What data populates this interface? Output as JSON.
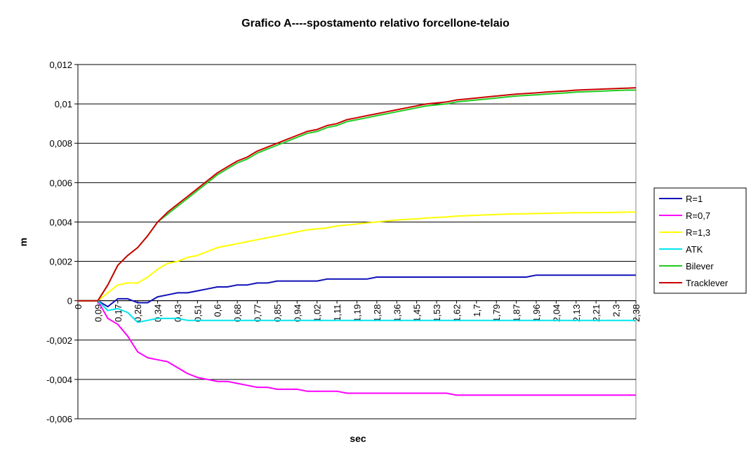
{
  "chart_data": {
    "type": "line",
    "title": "Grafico A----spostamento relativo forcellone-telaio",
    "x_label": "sec",
    "y_label": "m",
    "categories": [
      "0",
      null,
      "0,09",
      null,
      "0,17",
      null,
      "0,26",
      null,
      "0,34",
      null,
      "0,43",
      null,
      "0,51",
      null,
      "0,6",
      null,
      "0,68",
      null,
      "0,77",
      null,
      "0,85",
      null,
      "0,94",
      null,
      "1,02",
      null,
      "1,11",
      null,
      "1,19",
      null,
      "1,28",
      null,
      "1,36",
      null,
      "1,45",
      null,
      "1,53",
      null,
      "1,62",
      null,
      "1,7",
      null,
      "1,79",
      null,
      "1,87",
      null,
      "1,96",
      null,
      "2,04",
      null,
      "2,13",
      null,
      "2,21",
      null,
      "2,3",
      null,
      "2,38"
    ],
    "ylim": [
      -0.006,
      0.012
    ],
    "yticks": [
      {
        "value": 0.012,
        "label": "0,012"
      },
      {
        "value": 0.01,
        "label": "0,01"
      },
      {
        "value": 0.008,
        "label": "0,008"
      },
      {
        "value": 0.006,
        "label": "0,006"
      },
      {
        "value": 0.004,
        "label": "0,004"
      },
      {
        "value": 0.002,
        "label": "0,002"
      },
      0,
      {
        "value": -0.002,
        "label": "-0,002"
      },
      {
        "value": -0.004,
        "label": "-0,004"
      },
      {
        "value": -0.006,
        "label": "-0,006"
      }
    ],
    "grid": true,
    "legend": "right",
    "series": [
      {
        "name": "R=1",
        "color": "#1010b8",
        "values": [
          0,
          0,
          0,
          -0.0003,
          0.0001,
          0.0001,
          -0.0001,
          -0.0001,
          0.0002,
          0.0003,
          0.0004,
          0.0004,
          0.0005,
          0.0006,
          0.0007,
          0.0007,
          0.0008,
          0.0008,
          0.0009,
          0.0009,
          0.001,
          0.001,
          0.001,
          0.001,
          0.001,
          0.0011,
          0.0011,
          0.0011,
          0.0011,
          0.0011,
          0.0012,
          0.0012,
          0.0012,
          0.0012,
          0.0012,
          0.0012,
          0.0012,
          0.0012,
          0.0012,
          0.0012,
          0.0012,
          0.0012,
          0.0012,
          0.0012,
          0.0012,
          0.0012,
          0.0013,
          0.0013,
          0.0013,
          0.0013,
          0.0013,
          0.0013,
          0.0013,
          0.0013,
          0.0013,
          0.0013,
          0.0013
        ]
      },
      {
        "name": "R=0,7",
        "color": "#ff00ff",
        "values": [
          0,
          0,
          0,
          -0.0009,
          -0.0012,
          -0.0018,
          -0.0026,
          -0.0029,
          -0.003,
          -0.0031,
          -0.0034,
          -0.0037,
          -0.0039,
          -0.004,
          -0.0041,
          -0.0041,
          -0.0042,
          -0.0043,
          -0.0044,
          -0.0044,
          -0.0045,
          -0.0045,
          -0.0045,
          -0.0046,
          -0.0046,
          -0.0046,
          -0.0046,
          -0.0047,
          -0.0047,
          -0.0047,
          -0.0047,
          -0.0047,
          -0.0047,
          -0.0047,
          -0.0047,
          -0.0047,
          -0.0047,
          -0.0047,
          -0.0048,
          -0.0048,
          -0.0048,
          -0.0048,
          -0.0048,
          -0.0048,
          -0.0048,
          -0.0048,
          -0.0048,
          -0.0048,
          -0.0048,
          -0.0048,
          -0.0048,
          -0.0048,
          -0.0048,
          -0.0048,
          -0.0048,
          -0.0048,
          -0.0048
        ]
      },
      {
        "name": "R=1,3",
        "color": "#ffff00",
        "values": [
          0,
          0,
          0,
          0.0004,
          0.0008,
          0.0009,
          0.0009,
          0.0012,
          0.0016,
          0.0019,
          0.002,
          0.0022,
          0.0023,
          0.0025,
          0.0027,
          0.0028,
          0.0029,
          0.003,
          0.0031,
          0.0032,
          0.0033,
          0.0034,
          0.0035,
          0.0036,
          0.00365,
          0.0037,
          0.0038,
          0.00385,
          0.0039,
          0.00395,
          0.004,
          0.00405,
          0.0041,
          0.00413,
          0.00416,
          0.0042,
          0.00423,
          0.00426,
          0.0043,
          0.00432,
          0.00434,
          0.00436,
          0.00438,
          0.0044,
          0.00441,
          0.00442,
          0.00443,
          0.00444,
          0.00445,
          0.00446,
          0.00447,
          0.00447,
          0.00448,
          0.00448,
          0.00449,
          0.0045,
          0.0045
        ]
      },
      {
        "name": "ATK",
        "color": "#00e5ee",
        "values": [
          0,
          0,
          0,
          -0.0005,
          -0.0004,
          -0.0006,
          -0.0011,
          -0.001,
          -0.0009,
          -0.0009,
          -0.0009,
          -0.001,
          -0.001,
          -0.001,
          -0.001,
          -0.001,
          -0.001,
          -0.001,
          -0.001,
          -0.001,
          -0.001,
          -0.001,
          -0.001,
          -0.001,
          -0.001,
          -0.001,
          -0.001,
          -0.001,
          -0.001,
          -0.001,
          -0.001,
          -0.001,
          -0.001,
          -0.001,
          -0.001,
          -0.001,
          -0.001,
          -0.001,
          -0.001,
          -0.001,
          -0.001,
          -0.001,
          -0.001,
          -0.001,
          -0.001,
          -0.001,
          -0.001,
          -0.001,
          -0.001,
          -0.001,
          -0.001,
          -0.001,
          -0.001,
          -0.001,
          -0.001,
          -0.001,
          -0.001
        ]
      },
      {
        "name": "Bilever",
        "color": "#22cc22",
        "values": [
          0,
          0,
          0,
          0.0008,
          0.0018,
          0.0023,
          0.0027,
          0.0033,
          0.004,
          0.0044,
          0.0048,
          0.0052,
          0.0056,
          0.006,
          0.0064,
          0.0067,
          0.007,
          0.0072,
          0.0075,
          0.0077,
          0.0079,
          0.0081,
          0.0083,
          0.0085,
          0.0086,
          0.0088,
          0.0089,
          0.0091,
          0.0092,
          0.0093,
          0.0094,
          0.0095,
          0.0096,
          0.0097,
          0.0098,
          0.0099,
          0.00995,
          0.01,
          0.0101,
          0.01015,
          0.0102,
          0.01025,
          0.0103,
          0.01035,
          0.0104,
          0.01043,
          0.01046,
          0.0105,
          0.01053,
          0.01056,
          0.0106,
          0.01062,
          0.01064,
          0.01066,
          0.01068,
          0.0107,
          0.0107
        ]
      },
      {
        "name": "Tracklever",
        "color": "#cc0000",
        "values": [
          0,
          0,
          0,
          0.0008,
          0.0018,
          0.0023,
          0.0027,
          0.0033,
          0.004,
          0.0045,
          0.0049,
          0.0053,
          0.0057,
          0.0061,
          0.0065,
          0.0068,
          0.0071,
          0.0073,
          0.0076,
          0.0078,
          0.008,
          0.0082,
          0.0084,
          0.0086,
          0.0087,
          0.0089,
          0.009,
          0.0092,
          0.0093,
          0.0094,
          0.0095,
          0.0096,
          0.0097,
          0.0098,
          0.0099,
          0.01,
          0.01005,
          0.0101,
          0.0102,
          0.01025,
          0.0103,
          0.01035,
          0.0104,
          0.01045,
          0.0105,
          0.01053,
          0.01056,
          0.0106,
          0.01063,
          0.01066,
          0.0107,
          0.01072,
          0.01074,
          0.01076,
          0.01078,
          0.0108,
          0.01082
        ]
      }
    ]
  }
}
